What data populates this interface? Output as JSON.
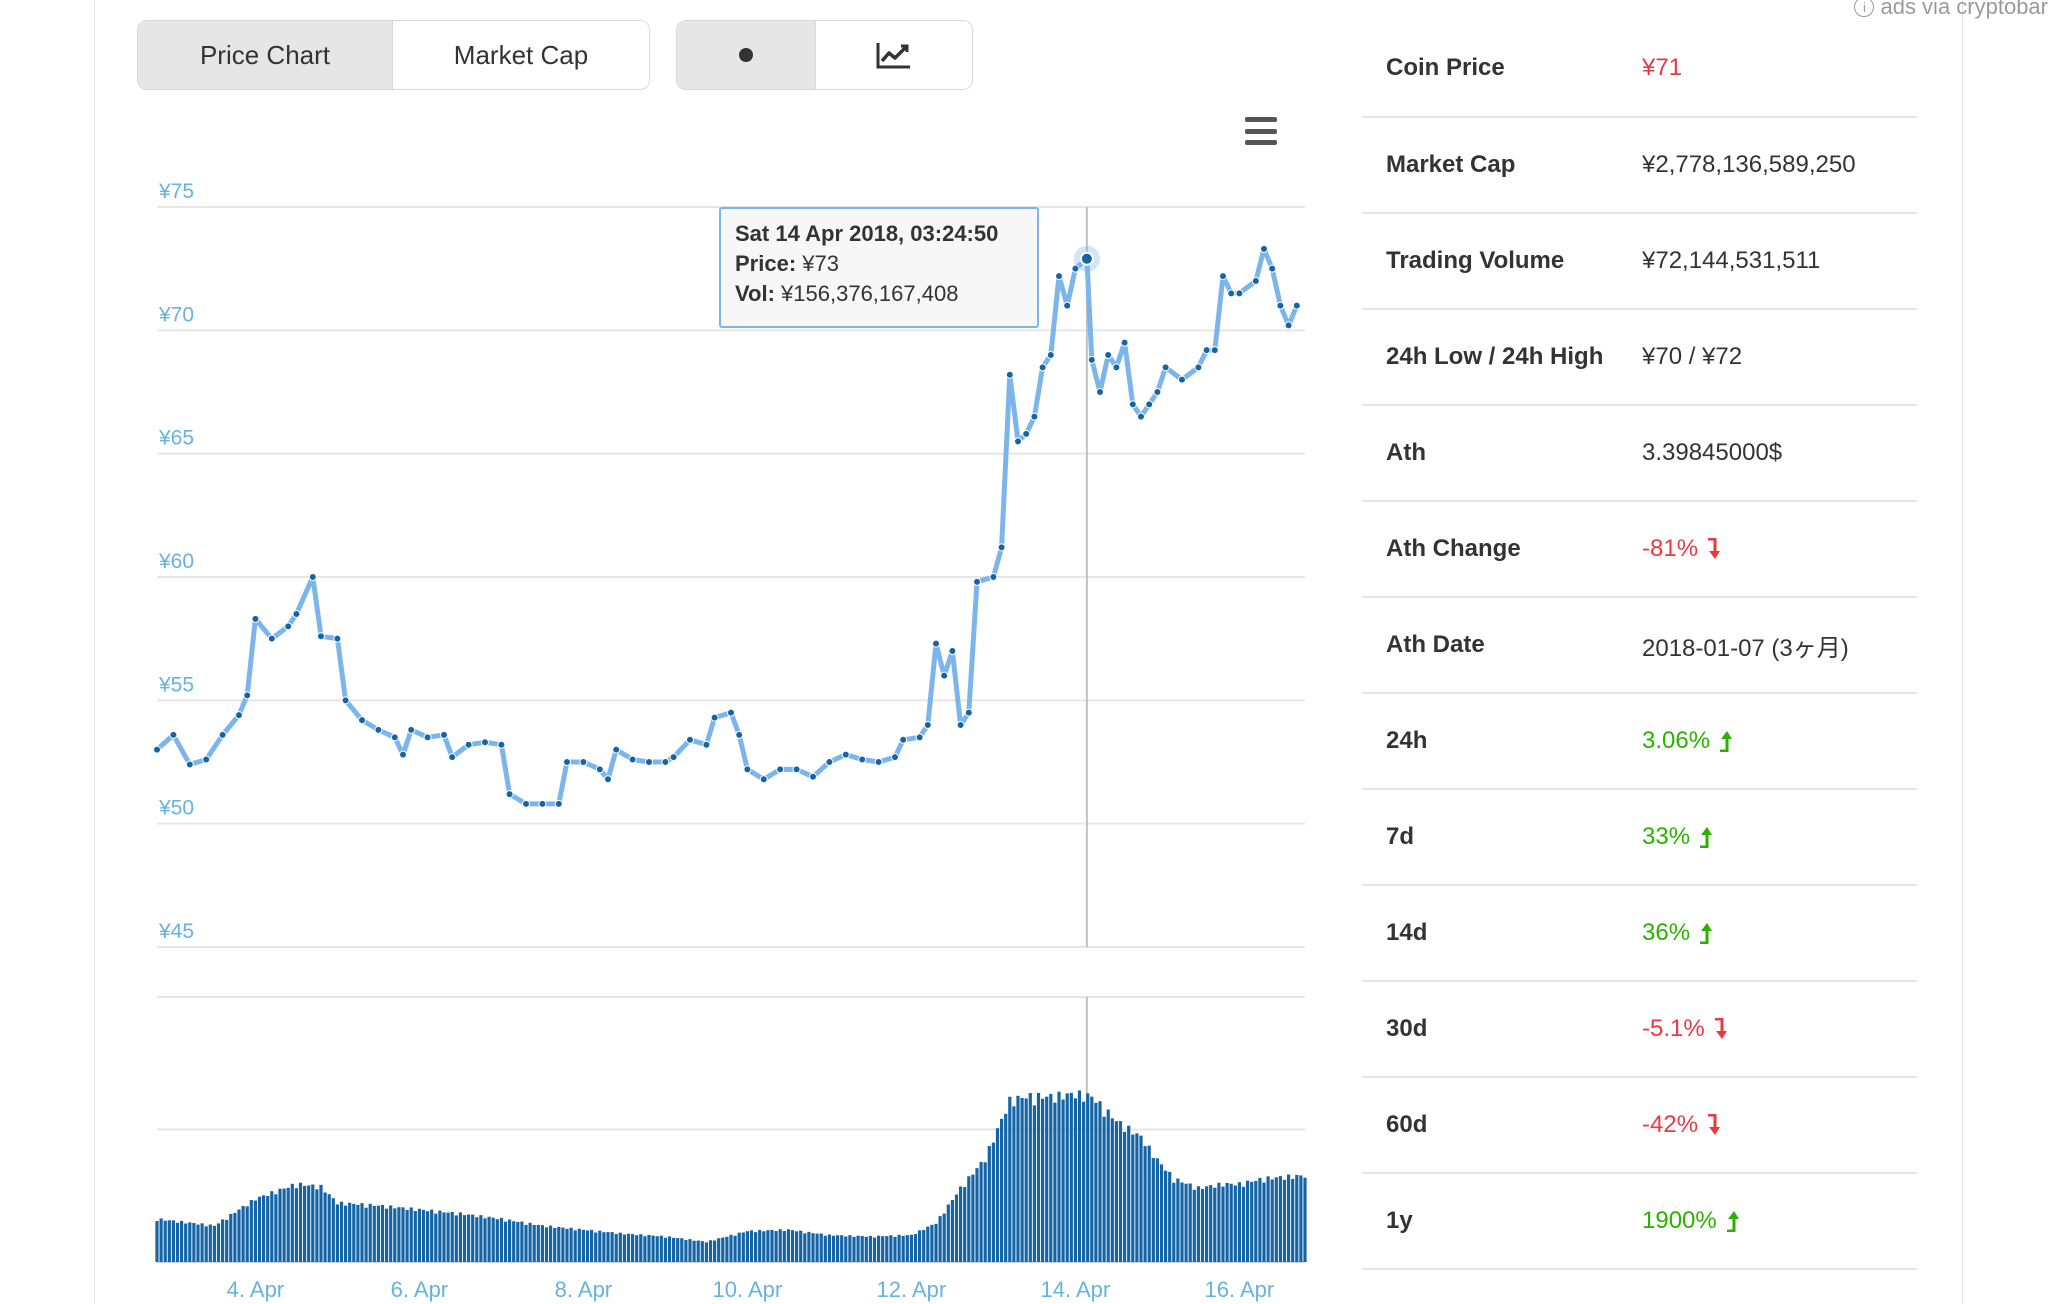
{
  "ads": {
    "text": "ads via cryptobar",
    "info_icon": "i"
  },
  "toggle": {
    "price_chart": "Price Chart",
    "market_cap": "Market Cap"
  },
  "view_toggle": {
    "dot_icon": "dot-icon",
    "line_icon": "line-chart-icon"
  },
  "tooltip": {
    "date": "Sat 14 Apr 2018, 03:24:50",
    "price_label": "Price:",
    "price_value": "¥73",
    "vol_label": "Vol:",
    "vol_value": "¥156,376,167,408"
  },
  "colors": {
    "line": "#7cb5ec",
    "point": "#1565a6",
    "volume": "#1565a6",
    "axis_text": "#66b3e0",
    "red": "#ea3943",
    "green": "#2ab200"
  },
  "chart_data": {
    "type": "line",
    "y_axis_labels": [
      "¥75",
      "¥70",
      "¥65",
      "¥60",
      "¥55",
      "¥50",
      "¥45"
    ],
    "y_ticks": [
      75,
      70,
      65,
      60,
      55,
      50,
      45
    ],
    "ylim": [
      45,
      75
    ],
    "x_tick_labels": [
      "4. Apr",
      "6. Apr",
      "8. Apr",
      "10. Apr",
      "12. Apr",
      "14. Apr",
      "16. Apr"
    ],
    "x_ticks_days": [
      4,
      6,
      8,
      10,
      12,
      14,
      16
    ],
    "xlim_days": [
      2.8,
      16.8
    ],
    "highlight_day": 14.14,
    "price_series": [
      [
        2.8,
        53.0
      ],
      [
        3.0,
        53.6
      ],
      [
        3.2,
        52.4
      ],
      [
        3.4,
        52.6
      ],
      [
        3.6,
        53.6
      ],
      [
        3.8,
        54.4
      ],
      [
        3.9,
        55.2
      ],
      [
        4.0,
        58.3
      ],
      [
        4.2,
        57.5
      ],
      [
        4.4,
        58.0
      ],
      [
        4.5,
        58.5
      ],
      [
        4.7,
        60.0
      ],
      [
        4.8,
        57.6
      ],
      [
        5.0,
        57.5
      ],
      [
        5.1,
        55.0
      ],
      [
        5.3,
        54.2
      ],
      [
        5.5,
        53.8
      ],
      [
        5.7,
        53.5
      ],
      [
        5.8,
        52.8
      ],
      [
        5.9,
        53.8
      ],
      [
        6.1,
        53.5
      ],
      [
        6.3,
        53.6
      ],
      [
        6.4,
        52.7
      ],
      [
        6.6,
        53.2
      ],
      [
        6.8,
        53.3
      ],
      [
        7.0,
        53.2
      ],
      [
        7.1,
        51.2
      ],
      [
        7.3,
        50.8
      ],
      [
        7.5,
        50.8
      ],
      [
        7.7,
        50.8
      ],
      [
        7.8,
        52.5
      ],
      [
        8.0,
        52.5
      ],
      [
        8.2,
        52.2
      ],
      [
        8.3,
        51.8
      ],
      [
        8.4,
        53.0
      ],
      [
        8.6,
        52.6
      ],
      [
        8.8,
        52.5
      ],
      [
        9.0,
        52.5
      ],
      [
        9.1,
        52.7
      ],
      [
        9.3,
        53.4
      ],
      [
        9.5,
        53.2
      ],
      [
        9.6,
        54.3
      ],
      [
        9.8,
        54.5
      ],
      [
        9.9,
        53.6
      ],
      [
        10.0,
        52.2
      ],
      [
        10.2,
        51.8
      ],
      [
        10.4,
        52.2
      ],
      [
        10.6,
        52.2
      ],
      [
        10.8,
        51.9
      ],
      [
        11.0,
        52.5
      ],
      [
        11.2,
        52.8
      ],
      [
        11.4,
        52.6
      ],
      [
        11.6,
        52.5
      ],
      [
        11.8,
        52.7
      ],
      [
        11.9,
        53.4
      ],
      [
        12.1,
        53.5
      ],
      [
        12.2,
        54.0
      ],
      [
        12.3,
        57.3
      ],
      [
        12.4,
        56.0
      ],
      [
        12.5,
        57.0
      ],
      [
        12.6,
        54.0
      ],
      [
        12.7,
        54.5
      ],
      [
        12.8,
        59.8
      ],
      [
        13.0,
        60.0
      ],
      [
        13.1,
        61.2
      ],
      [
        13.2,
        68.2
      ],
      [
        13.3,
        65.5
      ],
      [
        13.4,
        65.8
      ],
      [
        13.5,
        66.5
      ],
      [
        13.6,
        68.5
      ],
      [
        13.7,
        69.0
      ],
      [
        13.8,
        72.2
      ],
      [
        13.9,
        71.0
      ],
      [
        14.0,
        72.5
      ],
      [
        14.14,
        72.9
      ],
      [
        14.2,
        68.8
      ],
      [
        14.3,
        67.5
      ],
      [
        14.4,
        69.0
      ],
      [
        14.5,
        68.5
      ],
      [
        14.6,
        69.5
      ],
      [
        14.7,
        67.0
      ],
      [
        14.8,
        66.5
      ],
      [
        14.9,
        67.0
      ],
      [
        15.0,
        67.5
      ],
      [
        15.1,
        68.5
      ],
      [
        15.3,
        68.0
      ],
      [
        15.5,
        68.5
      ],
      [
        15.6,
        69.2
      ],
      [
        15.7,
        69.2
      ],
      [
        15.8,
        72.2
      ],
      [
        15.9,
        71.5
      ],
      [
        16.0,
        71.5
      ],
      [
        16.2,
        72.0
      ],
      [
        16.3,
        73.3
      ],
      [
        16.4,
        72.5
      ],
      [
        16.5,
        71.0
      ],
      [
        16.6,
        70.2
      ],
      [
        16.7,
        71.0
      ]
    ],
    "volume_series": [
      [
        2.8,
        320
      ],
      [
        3.5,
        270
      ],
      [
        4.0,
        470
      ],
      [
        4.5,
        580
      ],
      [
        4.8,
        560
      ],
      [
        5.0,
        440
      ],
      [
        5.5,
        420
      ],
      [
        6.0,
        390
      ],
      [
        6.5,
        360
      ],
      [
        7.0,
        320
      ],
      [
        7.5,
        270
      ],
      [
        8.0,
        240
      ],
      [
        8.5,
        210
      ],
      [
        9.0,
        190
      ],
      [
        9.5,
        150
      ],
      [
        10.0,
        230
      ],
      [
        10.5,
        240
      ],
      [
        11.0,
        200
      ],
      [
        11.5,
        190
      ],
      [
        12.0,
        200
      ],
      [
        12.3,
        290
      ],
      [
        12.6,
        550
      ],
      [
        12.9,
        770
      ],
      [
        13.2,
        1200
      ],
      [
        13.4,
        1230
      ],
      [
        13.7,
        1230
      ],
      [
        14.0,
        1250
      ],
      [
        14.2,
        1230
      ],
      [
        14.5,
        1050
      ],
      [
        14.8,
        930
      ],
      [
        15.0,
        760
      ],
      [
        15.2,
        620
      ],
      [
        15.5,
        550
      ],
      [
        15.8,
        580
      ],
      [
        16.0,
        580
      ],
      [
        16.3,
        620
      ],
      [
        16.7,
        640
      ]
    ],
    "volume_max": 2000
  },
  "stats": [
    {
      "label": "Coin Price",
      "value": "¥71",
      "tone": "red",
      "arrow": ""
    },
    {
      "label": "Market Cap",
      "value": "¥2,778,136,589,250",
      "tone": "",
      "arrow": ""
    },
    {
      "label": "Trading Volume",
      "value": "¥72,144,531,511",
      "tone": "",
      "arrow": ""
    },
    {
      "label": "24h Low / 24h High",
      "value": "¥70 / ¥72",
      "tone": "",
      "arrow": ""
    },
    {
      "label": "Ath",
      "value": "3.39845000$",
      "tone": "",
      "arrow": ""
    },
    {
      "label": "Ath Change",
      "value": "-81%",
      "tone": "red",
      "arrow": "down"
    },
    {
      "label": "Ath Date",
      "value": "2018-01-07 (3ヶ月)",
      "tone": "",
      "arrow": ""
    },
    {
      "label": "24h",
      "value": "3.06%",
      "tone": "green",
      "arrow": "up"
    },
    {
      "label": "7d",
      "value": "33%",
      "tone": "green",
      "arrow": "up"
    },
    {
      "label": "14d",
      "value": "36%",
      "tone": "green",
      "arrow": "up"
    },
    {
      "label": "30d",
      "value": "-5.1%",
      "tone": "red",
      "arrow": "down"
    },
    {
      "label": "60d",
      "value": "-42%",
      "tone": "red",
      "arrow": "down"
    },
    {
      "label": "1y",
      "value": "1900%",
      "tone": "green",
      "arrow": "up"
    }
  ]
}
